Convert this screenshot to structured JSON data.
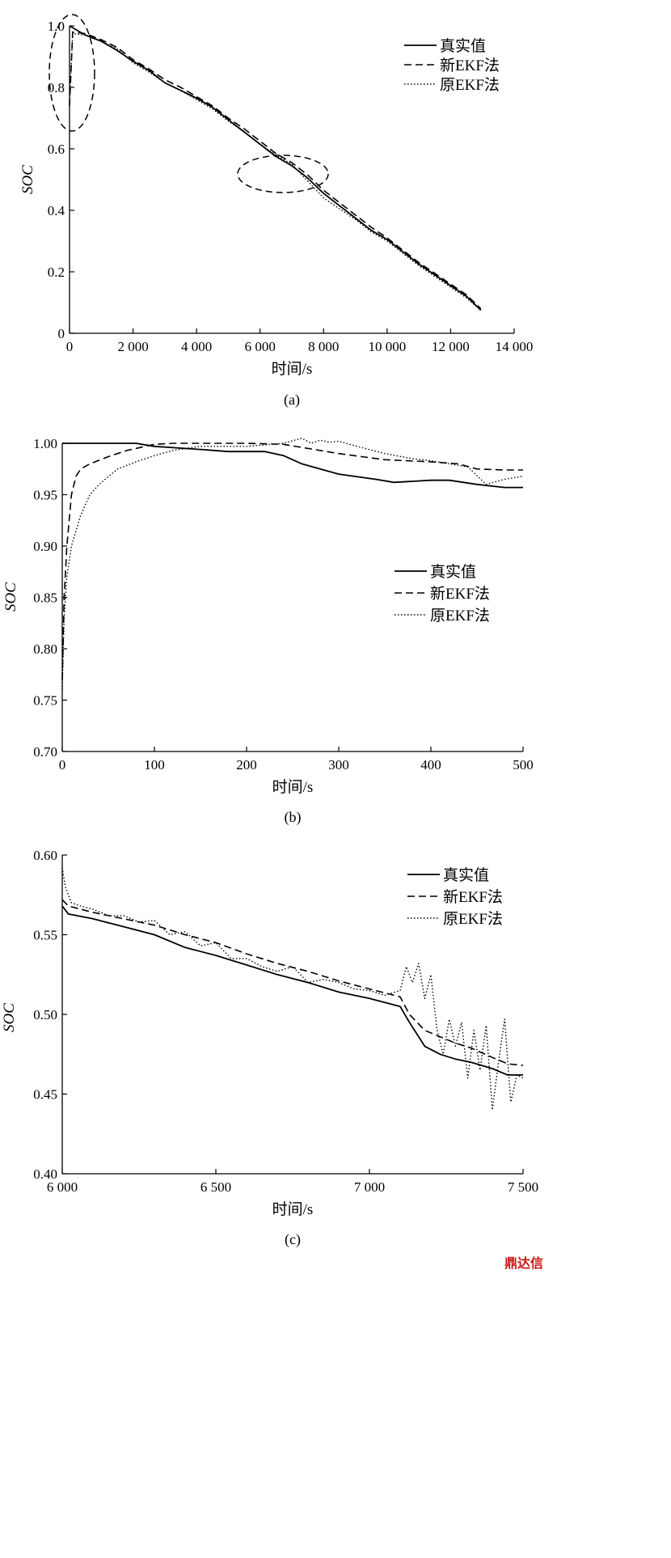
{
  "watermark": "鼎达信",
  "chart_data": [
    {
      "type": "line",
      "panel_label": "(a)",
      "xlabel": "时间/s",
      "ylabel": "SOC",
      "xlim": [
        0,
        14000
      ],
      "ylim": [
        0,
        1.0
      ],
      "xticks": [
        0,
        2000,
        4000,
        6000,
        8000,
        10000,
        12000,
        14000
      ],
      "xtick_labels": [
        "0",
        "2 000",
        "4 000",
        "6 000",
        "8 000",
        "10 000",
        "12 000",
        "14 000"
      ],
      "yticks": [
        0,
        0.2,
        0.4,
        0.6,
        0.8,
        1.0
      ],
      "ytick_labels": [
        "0",
        "0.2",
        "0.4",
        "0.6",
        "0.8",
        "1.0"
      ],
      "legend_position": "top-right",
      "grid": false,
      "series": [
        {
          "name": "真实值",
          "style": "solid",
          "x": [
            0,
            500,
            1000,
            1500,
            2000,
            2500,
            3000,
            3500,
            4000,
            4500,
            5000,
            5500,
            6000,
            6500,
            7000,
            7500,
            8000,
            8500,
            9000,
            9500,
            10000,
            10500,
            11000,
            11500,
            12000,
            12500,
            12950
          ],
          "y": [
            1.0,
            0.97,
            0.95,
            0.92,
            0.885,
            0.855,
            0.815,
            0.79,
            0.765,
            0.735,
            0.695,
            0.655,
            0.615,
            0.575,
            0.545,
            0.505,
            0.455,
            0.415,
            0.375,
            0.335,
            0.305,
            0.265,
            0.225,
            0.19,
            0.155,
            0.12,
            0.075
          ]
        },
        {
          "name": "新EKF法",
          "style": "dashed",
          "x": [
            0,
            100,
            500,
            1000,
            1500,
            2000,
            2500,
            3000,
            3500,
            4000,
            4500,
            5000,
            5500,
            6000,
            6500,
            7000,
            7500,
            8000,
            8500,
            9000,
            9500,
            10000,
            10500,
            11000,
            11500,
            12000,
            12500,
            12950
          ],
          "y": [
            0.74,
            0.98,
            0.975,
            0.955,
            0.93,
            0.89,
            0.86,
            0.825,
            0.8,
            0.77,
            0.74,
            0.7,
            0.665,
            0.625,
            0.585,
            0.555,
            0.515,
            0.465,
            0.425,
            0.385,
            0.345,
            0.31,
            0.27,
            0.23,
            0.195,
            0.16,
            0.125,
            0.08
          ]
        },
        {
          "name": "原EKF法",
          "style": "dotted",
          "x": [
            0,
            100,
            500,
            1000,
            1500,
            2000,
            2500,
            3000,
            3500,
            4000,
            4500,
            5000,
            5500,
            6000,
            6500,
            7000,
            7500,
            8000,
            8500,
            9000,
            9500,
            10000,
            10500,
            11000,
            11500,
            12000,
            12500,
            12950
          ],
          "y": [
            0.75,
            0.975,
            0.97,
            0.95,
            0.925,
            0.88,
            0.85,
            0.815,
            0.79,
            0.76,
            0.73,
            0.69,
            0.655,
            0.615,
            0.58,
            0.55,
            0.495,
            0.44,
            0.405,
            0.37,
            0.33,
            0.3,
            0.26,
            0.22,
            0.185,
            0.15,
            0.115,
            0.075
          ]
        }
      ]
    },
    {
      "type": "line",
      "panel_label": "(b)",
      "xlabel": "时间/s",
      "ylabel": "SOC",
      "xlim": [
        0,
        500
      ],
      "ylim": [
        0.7,
        1.0
      ],
      "xticks": [
        0,
        100,
        200,
        300,
        400,
        500
      ],
      "xtick_labels": [
        "0",
        "100",
        "200",
        "300",
        "400",
        "500"
      ],
      "yticks": [
        0.7,
        0.75,
        0.8,
        0.85,
        0.9,
        0.95,
        1.0
      ],
      "ytick_labels": [
        "0.70",
        "0.75",
        "0.80",
        "0.85",
        "0.90",
        "0.95",
        "1.00"
      ],
      "legend_position": "center-right",
      "grid": false,
      "series": [
        {
          "name": "真实值",
          "style": "solid",
          "x": [
            0,
            80,
            100,
            150,
            180,
            220,
            240,
            260,
            300,
            340,
            360,
            400,
            420,
            450,
            480,
            500
          ],
          "y": [
            1.0,
            1.0,
            0.997,
            0.994,
            0.992,
            0.992,
            0.988,
            0.98,
            0.97,
            0.965,
            0.962,
            0.964,
            0.964,
            0.96,
            0.957,
            0.957
          ]
        },
        {
          "name": "新EKF法",
          "style": "dashed",
          "x": [
            0,
            2,
            5,
            10,
            15,
            20,
            30,
            50,
            70,
            90,
            100,
            120,
            150,
            200,
            240,
            260,
            300,
            350,
            400,
            430,
            450,
            480,
            500
          ],
          "y": [
            0.77,
            0.85,
            0.9,
            0.95,
            0.968,
            0.975,
            0.98,
            0.987,
            0.993,
            0.997,
            0.999,
            1.0,
            1.0,
            1.0,
            0.999,
            0.996,
            0.99,
            0.984,
            0.982,
            0.98,
            0.975,
            0.974,
            0.974
          ]
        },
        {
          "name": "原EKF法",
          "style": "dotted",
          "x": [
            0,
            2,
            5,
            10,
            20,
            30,
            40,
            60,
            80,
            100,
            120,
            150,
            200,
            240,
            260,
            270,
            280,
            290,
            300,
            320,
            350,
            380,
            400,
            420,
            440,
            460,
            480,
            500
          ],
          "y": [
            0.76,
            0.83,
            0.87,
            0.9,
            0.93,
            0.95,
            0.96,
            0.975,
            0.982,
            0.988,
            0.993,
            0.997,
            0.997,
            1.0,
            1.005,
            1.0,
            1.003,
            1.001,
            1.002,
            0.997,
            0.99,
            0.985,
            0.983,
            0.98,
            0.977,
            0.96,
            0.965,
            0.968
          ]
        }
      ]
    },
    {
      "type": "line",
      "panel_label": "(c)",
      "xlabel": "时间/s",
      "ylabel": "SOC",
      "xlim": [
        6000,
        7500
      ],
      "ylim": [
        0.4,
        0.6
      ],
      "xticks": [
        6000,
        6500,
        7000,
        7500
      ],
      "xtick_labels": [
        "6 000",
        "6 500",
        "7 000",
        "7 500"
      ],
      "yticks": [
        0.4,
        0.45,
        0.5,
        0.55,
        0.6
      ],
      "ytick_labels": [
        "0.40",
        "0.45",
        "0.50",
        "0.55",
        "0.60"
      ],
      "legend_position": "top-right",
      "grid": false,
      "series": [
        {
          "name": "真实值",
          "style": "solid",
          "x": [
            6000,
            6020,
            6100,
            6200,
            6300,
            6400,
            6500,
            6600,
            6700,
            6800,
            6900,
            7000,
            7100,
            7130,
            7180,
            7230,
            7280,
            7330,
            7400,
            7450,
            7500
          ],
          "y": [
            0.568,
            0.563,
            0.56,
            0.555,
            0.55,
            0.542,
            0.537,
            0.531,
            0.525,
            0.52,
            0.514,
            0.51,
            0.505,
            0.495,
            0.48,
            0.475,
            0.472,
            0.47,
            0.466,
            0.462,
            0.462
          ]
        },
        {
          "name": "新EKF法",
          "style": "dashed",
          "x": [
            6000,
            6020,
            6100,
            6200,
            6300,
            6400,
            6500,
            6600,
            6700,
            6800,
            6900,
            7000,
            7100,
            7130,
            7180,
            7230,
            7280,
            7330,
            7400,
            7450,
            7500
          ],
          "y": [
            0.572,
            0.568,
            0.564,
            0.56,
            0.556,
            0.55,
            0.545,
            0.538,
            0.532,
            0.527,
            0.521,
            0.516,
            0.511,
            0.5,
            0.49,
            0.486,
            0.482,
            0.479,
            0.473,
            0.469,
            0.468
          ]
        },
        {
          "name": "原EKF法",
          "style": "dotted",
          "x": [
            6000,
            6010,
            6030,
            6060,
            6100,
            6150,
            6200,
            6250,
            6300,
            6350,
            6400,
            6450,
            6500,
            6550,
            6600,
            6650,
            6700,
            6750,
            6800,
            6850,
            6900,
            6950,
            7000,
            7050,
            7100,
            7120,
            7140,
            7160,
            7180,
            7200,
            7220,
            7240,
            7260,
            7280,
            7300,
            7320,
            7340,
            7360,
            7380,
            7400,
            7420,
            7440,
            7460,
            7480,
            7500
          ],
          "y": [
            0.592,
            0.58,
            0.57,
            0.568,
            0.566,
            0.562,
            0.562,
            0.558,
            0.559,
            0.55,
            0.552,
            0.543,
            0.545,
            0.535,
            0.535,
            0.53,
            0.527,
            0.53,
            0.52,
            0.522,
            0.52,
            0.516,
            0.515,
            0.512,
            0.515,
            0.53,
            0.52,
            0.532,
            0.51,
            0.525,
            0.49,
            0.475,
            0.497,
            0.48,
            0.495,
            0.46,
            0.49,
            0.465,
            0.493,
            0.44,
            0.47,
            0.497,
            0.445,
            0.462,
            0.46
          ]
        }
      ]
    }
  ]
}
